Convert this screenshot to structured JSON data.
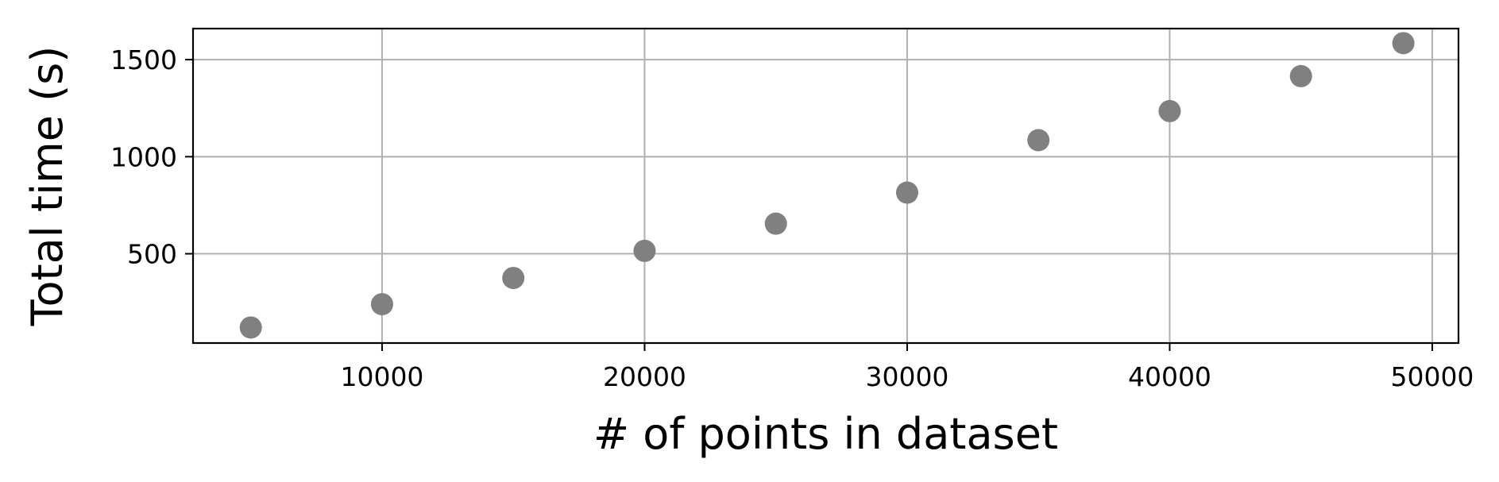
{
  "chart_data": {
    "type": "scatter",
    "title": "",
    "xlabel": "# of points in dataset",
    "ylabel": "Total time (s)",
    "xlim": [
      2800,
      51000
    ],
    "ylim": [
      40,
      1660
    ],
    "xticks": [
      10000,
      20000,
      30000,
      40000,
      50000
    ],
    "xtick_labels": [
      "10000",
      "20000",
      "30000",
      "40000",
      "50000"
    ],
    "yticks": [
      500,
      1000,
      1500
    ],
    "ytick_labels": [
      "500",
      "1000",
      "1500"
    ],
    "grid": true,
    "legend": "none",
    "marker_color": "#808080",
    "grid_color": "#b0b0b0",
    "series": [
      {
        "x": [
          5000,
          10000,
          15000,
          20000,
          25000,
          30000,
          35000,
          40000,
          45000,
          48900
        ],
        "y": [
          120,
          240,
          375,
          515,
          655,
          815,
          1085,
          1235,
          1415,
          1585
        ]
      }
    ]
  }
}
